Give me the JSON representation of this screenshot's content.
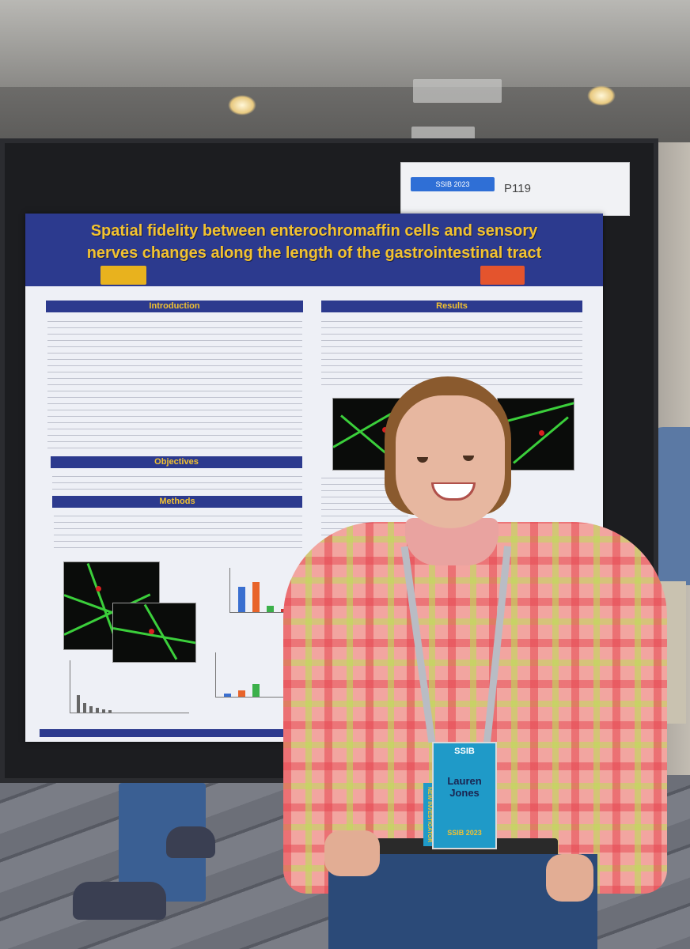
{
  "poster": {
    "title_line1": "Spatial fidelity between enterochromaffin cells and sensory",
    "title_line2": "nerves changes along the length of the gastrointestinal tract",
    "sections": {
      "introduction": "Introduction",
      "objectives": "Objectives",
      "methods": "Methods",
      "results": "Results"
    }
  },
  "board_tag": {
    "event": "SSIB 2023",
    "number": "P119"
  },
  "badge": {
    "org": "SSIB",
    "first_name": "Lauren",
    "last_name": "Jones",
    "side_label": "NEW INVESTIGATOR",
    "event": "SSIB 2023"
  },
  "colors": {
    "poster_header": "#2c3a8e",
    "poster_title": "#f2c230",
    "badge": "#1f9ac8"
  }
}
